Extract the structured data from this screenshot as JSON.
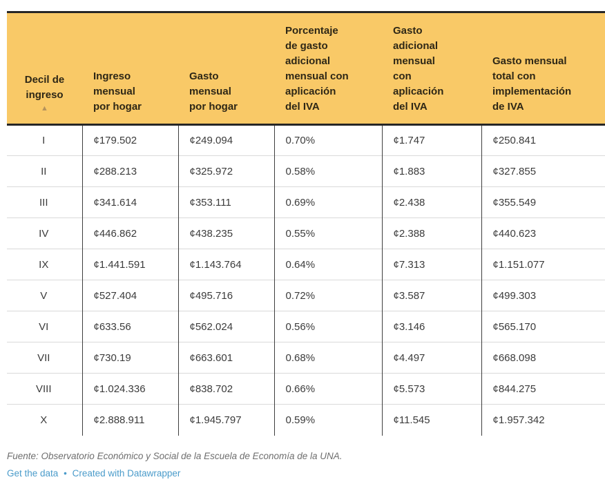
{
  "chart_data": {
    "type": "table",
    "columns": [
      "Decil de ingreso",
      "Ingreso mensual por hogar",
      "Gasto mensual por hogar",
      "Porcentaje de gasto adicional mensual con aplicación del IVA",
      "Gasto adicional mensual con aplicación del IVA",
      "Gasto mensual total con implementación de IVA"
    ],
    "rows": [
      [
        "I",
        "¢179.502",
        "¢249.094",
        "0.70%",
        "¢1.747",
        "¢250.841"
      ],
      [
        "II",
        "¢288.213",
        "¢325.972",
        "0.58%",
        "¢1.883",
        "¢327.855"
      ],
      [
        "III",
        "¢341.614",
        "¢353.111",
        "0.69%",
        "¢2.438",
        "¢355.549"
      ],
      [
        "IV",
        "¢446.862",
        "¢438.235",
        "0.55%",
        "¢2.388",
        "¢440.623"
      ],
      [
        "IX",
        "¢1.441.591",
        "¢1.143.764",
        "0.64%",
        "¢7.313",
        "¢1.151.077"
      ],
      [
        "V",
        "¢527.404",
        "¢495.716",
        "0.72%",
        "¢3.587",
        "¢499.303"
      ],
      [
        "VI",
        "¢633.56",
        "¢562.024",
        "0.56%",
        "¢3.146",
        "¢565.170"
      ],
      [
        "VII",
        "¢730.19",
        "¢663.601",
        "0.68%",
        "¢4.497",
        "¢668.098"
      ],
      [
        "VIII",
        "¢1.024.336",
        "¢838.702",
        "0.66%",
        "¢5.573",
        "¢844.275"
      ],
      [
        "X",
        "¢2.888.911",
        "¢1.945.797",
        "0.59%",
        "¢11.545",
        "¢1.957.342"
      ]
    ],
    "sorted_column": "Decil de ingreso",
    "sort_direction": "ascending"
  },
  "table": {
    "header_labels_multiline": [
      "Decil de\ningreso",
      "Ingreso\nmensual\npor hogar",
      "Gasto\nmensual\npor hogar",
      "Porcentaje\nde gasto\nadicional\nmensual con\naplicación\ndel IVA",
      "Gasto\nadicional\nmensual\ncon\naplicación\ndel IVA",
      "Gasto mensual\ntotal con\nimplementación\nde IVA"
    ],
    "sorted_column_index": 0,
    "sort_icon": "▲"
  },
  "footer": {
    "source": "Fuente: Observatorio Económico y Social de la Escuela de Economía de la UNA.",
    "links": [
      {
        "label": "Get the data"
      },
      {
        "label": "Created with Datawrapper"
      }
    ],
    "separator": "•"
  },
  "colors": {
    "header_background": "#f9c967",
    "header_text": "#2e2716",
    "sort_arrow": "#b5935c",
    "thick_border": "#262626",
    "column_divider": "#3d3d3d",
    "row_separator": "#d9d9d9",
    "body_text": "#3b3b3b",
    "source_text": "#6e6e6e",
    "link_blue": "#4a9bca"
  }
}
